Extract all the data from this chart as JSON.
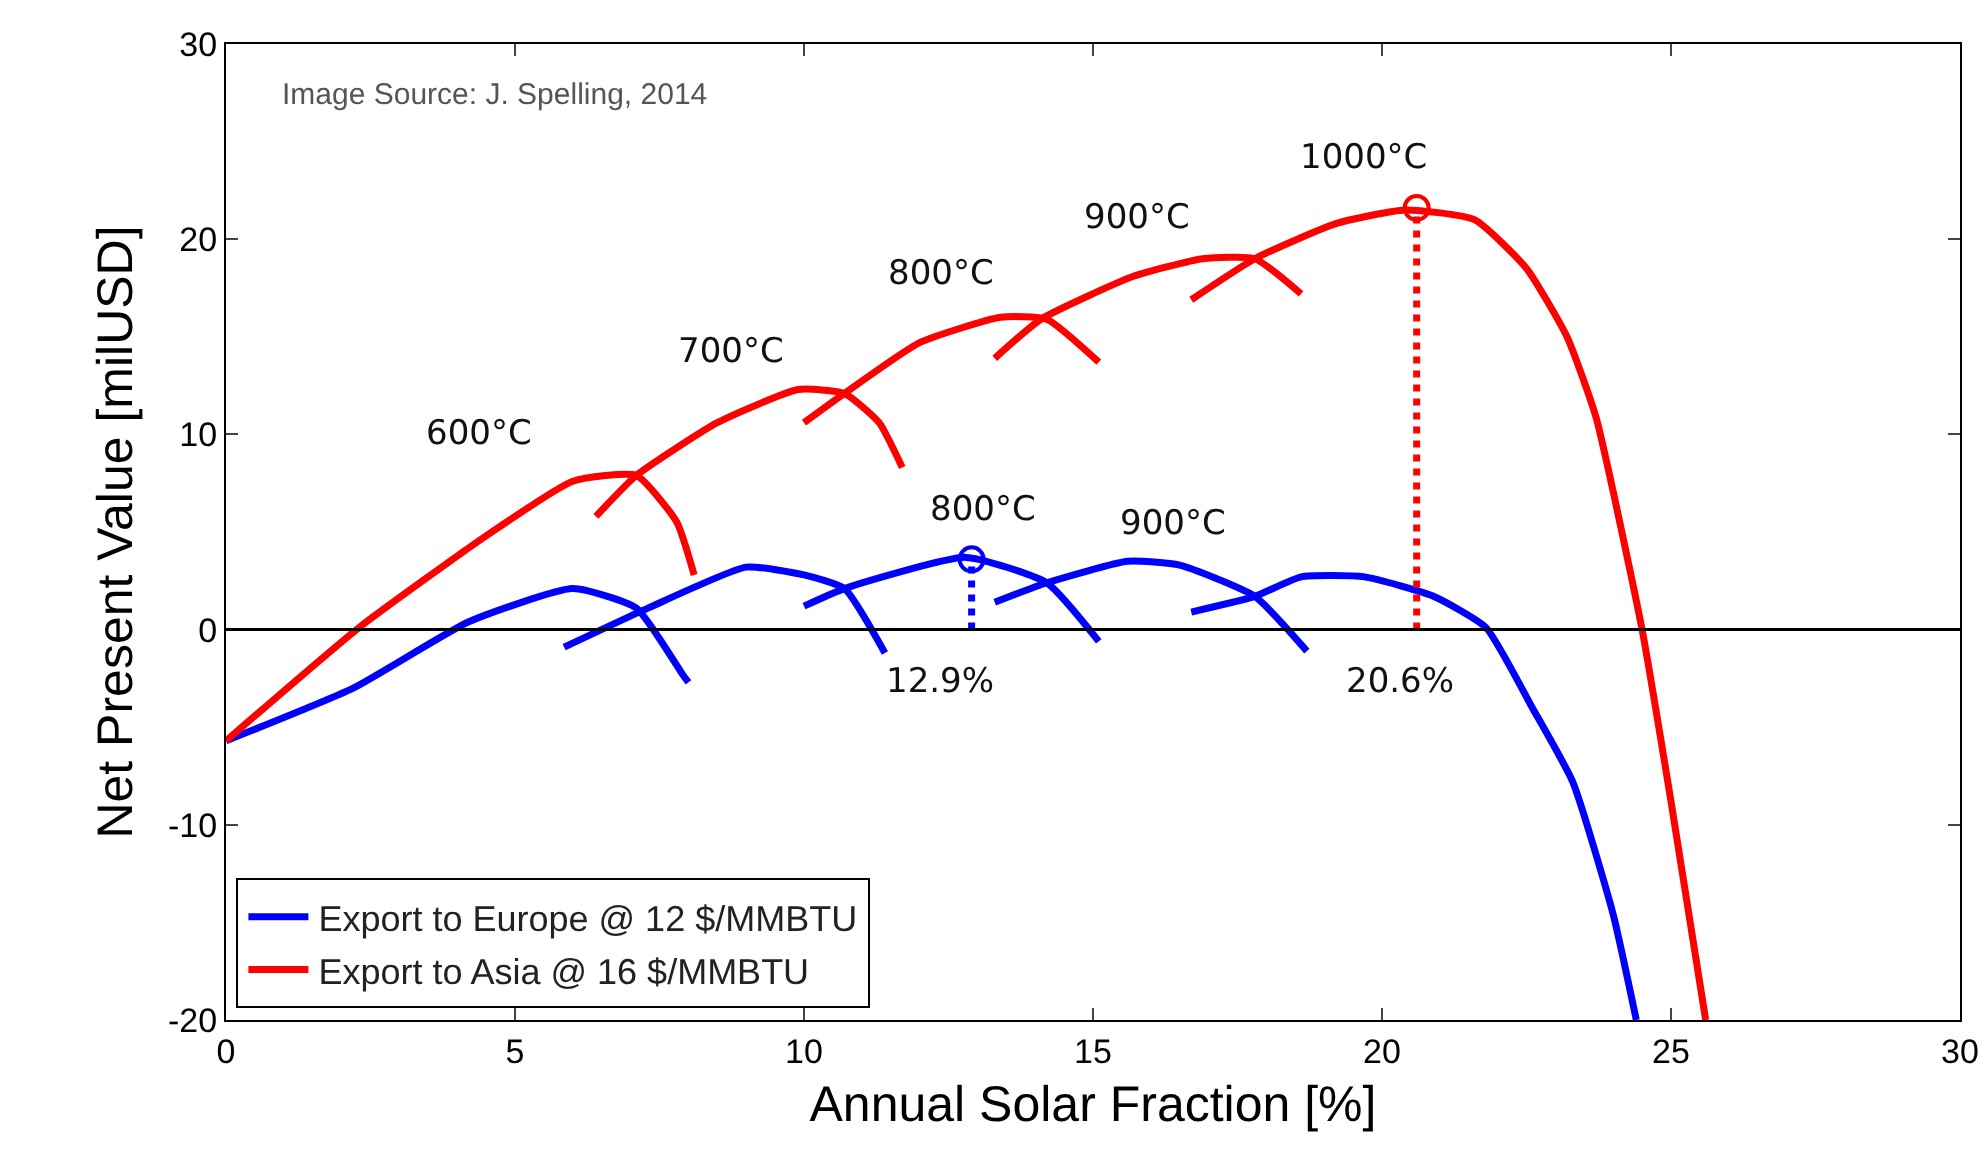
{
  "chart_data": {
    "type": "line",
    "xlabel": "Annual Solar Fraction [%]",
    "ylabel": "Net Present Value [milUSD]",
    "xlim": [
      0,
      30
    ],
    "xticks": [
      0,
      5,
      10,
      15,
      20,
      25,
      30
    ],
    "ylim": [
      -20,
      30
    ],
    "yticks": [
      -20,
      -10,
      0,
      10,
      20,
      30
    ],
    "grid": false,
    "legend": "bottom left",
    "line_style": "solid",
    "marker": "none",
    "ref_lines": [
      {
        "axis": "y",
        "value": 0,
        "color": "#000000"
      }
    ],
    "series": [
      {
        "name": "Export to Europe @ 12 $/MMBTU",
        "color": "#0000ff",
        "x": [
          0,
          2.2,
          4.2,
          6.0,
          7.1,
          7.9,
          8.0
        ],
        "values": [
          -5.7,
          -3.0,
          0.4,
          2.1,
          1.1,
          -2.3,
          -2.7
        ]
      },
      {
        "color": "#0000ff",
        "x": [
          5.85,
          7.3,
          9.0,
          10.0,
          10.7,
          11.4
        ],
        "values": [
          -0.9,
          1.1,
          3.2,
          2.8,
          2.1,
          -1.2
        ]
      },
      {
        "color": "#0000ff",
        "x": [
          10.0,
          10.7,
          12.8,
          14.2,
          15.1
        ],
        "values": [
          1.2,
          2.1,
          3.7,
          2.4,
          -0.6
        ]
      },
      {
        "color": "#0000ff",
        "x": [
          13.3,
          14.2,
          15.6,
          16.5,
          17.8,
          18.7
        ],
        "values": [
          1.4,
          2.4,
          3.5,
          3.3,
          1.7,
          -1.1
        ]
      },
      {
        "color": "#0000ff",
        "x": [
          16.7,
          17.8,
          18.6,
          19.7,
          20.9,
          21.8,
          22.6,
          23.3,
          24.0,
          24.4
        ],
        "values": [
          0.9,
          1.7,
          2.7,
          2.7,
          1.7,
          0.1,
          -4.0,
          -7.8,
          -14.6,
          -20
        ]
      },
      {
        "name": "Export to Asia @ 16 $/MMBTU",
        "color": "#ff0000",
        "x": [
          0,
          2.3,
          4.5,
          6.0,
          7.1,
          7.8,
          8.1
        ],
        "values": [
          -5.7,
          0.1,
          4.8,
          7.6,
          7.9,
          5.5,
          2.8
        ]
      },
      {
        "color": "#ff0000",
        "x": [
          6.4,
          7.1,
          8.5,
          9.9,
          10.7,
          11.3,
          11.7
        ],
        "values": [
          5.8,
          7.9,
          10.6,
          12.3,
          12.1,
          10.6,
          8.3
        ]
      },
      {
        "color": "#ff0000",
        "x": [
          10.0,
          10.7,
          12.0,
          13.4,
          14.2,
          15.1
        ],
        "values": [
          10.6,
          12.1,
          14.7,
          16.0,
          15.9,
          13.7
        ]
      },
      {
        "color": "#ff0000",
        "x": [
          13.3,
          14.1,
          15.7,
          16.9,
          17.8,
          18.6
        ],
        "values": [
          13.9,
          15.9,
          18.1,
          19.0,
          19.0,
          17.2
        ]
      },
      {
        "color": "#ff0000",
        "x": [
          16.7,
          17.8,
          19.2,
          20.4,
          21.6,
          22.5,
          23.2,
          23.7,
          24.5,
          25.0,
          25.6
        ],
        "values": [
          16.9,
          19.0,
          20.8,
          21.5,
          21.0,
          18.5,
          15.0,
          10.9,
          0,
          -8.8,
          -20
        ]
      },
      {
        "color": "#0000ff",
        "line_style": "dotted",
        "x": [
          12.9,
          12.9
        ],
        "values": [
          0,
          3.6
        ]
      },
      {
        "color": "#ff0000",
        "line_style": "dotted",
        "x": [
          20.6,
          20.6
        ],
        "values": [
          0,
          21.6
        ]
      },
      {
        "type": "scatter",
        "marker": "circle",
        "color": "#0000ff",
        "x": [
          12.9
        ],
        "values": [
          3.6
        ]
      },
      {
        "type": "scatter",
        "marker": "circle",
        "color": "#ff0000",
        "x": [
          20.6
        ],
        "values": [
          21.6
        ]
      }
    ],
    "annotations": [
      "Image Source: J. Spelling, 2014",
      "600°C",
      "700°C",
      "800°C",
      "900°C",
      "1000°C",
      "800°C",
      "900°C",
      "12.9%",
      "20.6%"
    ]
  }
}
